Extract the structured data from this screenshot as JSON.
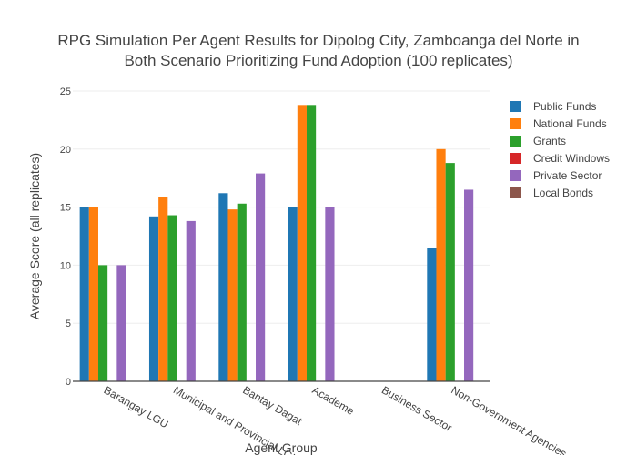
{
  "chart_data": {
    "type": "bar",
    "title_line1": "RPG Simulation Per Agent Results for Dipolog City, Zamboanga del Norte in",
    "title_line2": "Both Scenario Prioritizing Fund Adoption (100 replicates)",
    "xlabel": "Agent Group",
    "ylabel": "Average Score (all replicates)",
    "ylim": [
      0,
      25
    ],
    "yticks": [
      0,
      5,
      10,
      15,
      20,
      25
    ],
    "grid": true,
    "legend_position": "right",
    "categories": [
      "Barangay LGU",
      "Municipal and Provincial LGU",
      "Bantay Dagat",
      "Academe",
      "Business Sector",
      "Non-Government Agencies"
    ],
    "series": [
      {
        "name": "Public Funds",
        "color": "#1f77b4",
        "values": [
          15.0,
          14.2,
          16.2,
          15.0,
          null,
          11.5
        ]
      },
      {
        "name": "National Funds",
        "color": "#ff7f0e",
        "values": [
          15.0,
          15.9,
          14.8,
          23.8,
          null,
          20.0
        ]
      },
      {
        "name": "Grants",
        "color": "#2ca02c",
        "values": [
          10.0,
          14.3,
          15.3,
          23.8,
          null,
          18.8
        ]
      },
      {
        "name": "Credit Windows",
        "color": "#d62728",
        "values": [
          null,
          null,
          null,
          null,
          null,
          null
        ]
      },
      {
        "name": "Private Sector",
        "color": "#9467bd",
        "values": [
          10.0,
          13.8,
          17.9,
          15.0,
          null,
          16.5
        ]
      },
      {
        "name": "Local Bonds",
        "color": "#8c564b",
        "values": [
          null,
          null,
          null,
          null,
          null,
          null
        ]
      }
    ]
  }
}
